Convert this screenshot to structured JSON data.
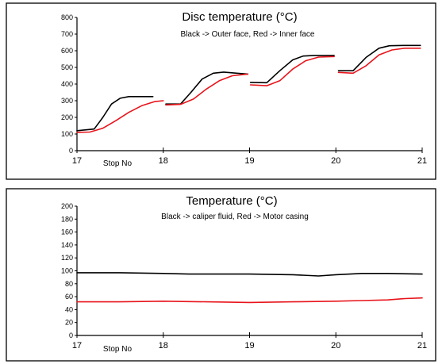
{
  "charts": [
    {
      "title": "Disc temperature (°C)",
      "subtitle": "Black -> Outer face, Red -> Inner face",
      "xlabel": "Stop No"
    },
    {
      "title": "Temperature (°C)",
      "subtitle": "Black -> caliper fluid, Red -> Motor casing",
      "xlabel": "Stop No"
    }
  ],
  "colors": {
    "black_series": "#000000",
    "red_series": "#e8141b",
    "frame": "#000000"
  },
  "chart_data": [
    {
      "type": "line",
      "title": "Disc temperature (°C)",
      "subtitle": "Black -> Outer face, Red -> Inner face",
      "xlabel": "Stop No",
      "ylabel": "",
      "xlim": [
        17,
        21
      ],
      "ylim": [
        0,
        800
      ],
      "xticks": [
        17,
        18,
        19,
        20,
        21
      ],
      "yticks": [
        0,
        100,
        200,
        300,
        400,
        500,
        600,
        700,
        800
      ],
      "grid": false,
      "series": [
        {
          "name": "Outer face",
          "color": "#000000",
          "segments": [
            [
              [
                17.0,
                120
              ],
              [
                17.2,
                130
              ],
              [
                17.3,
                200
              ],
              [
                17.4,
                280
              ],
              [
                17.5,
                315
              ],
              [
                17.6,
                325
              ],
              [
                17.75,
                325
              ],
              [
                17.88,
                325
              ]
            ],
            [
              [
                18.03,
                280
              ],
              [
                18.2,
                280
              ],
              [
                18.32,
                350
              ],
              [
                18.45,
                430
              ],
              [
                18.58,
                465
              ],
              [
                18.7,
                472
              ],
              [
                18.85,
                465
              ],
              [
                18.98,
                460
              ]
            ],
            [
              [
                19.01,
                410
              ],
              [
                19.2,
                408
              ],
              [
                19.35,
                480
              ],
              [
                19.5,
                545
              ],
              [
                19.62,
                568
              ],
              [
                19.75,
                572
              ],
              [
                19.98,
                572
              ]
            ],
            [
              [
                20.03,
                480
              ],
              [
                20.2,
                480
              ],
              [
                20.35,
                560
              ],
              [
                20.5,
                615
              ],
              [
                20.62,
                630
              ],
              [
                20.78,
                632
              ],
              [
                20.98,
                632
              ]
            ]
          ]
        },
        {
          "name": "Inner face",
          "color": "#e8141b",
          "segments": [
            [
              [
                17.0,
                110
              ],
              [
                17.15,
                112
              ],
              [
                17.3,
                135
              ],
              [
                17.45,
                180
              ],
              [
                17.6,
                230
              ],
              [
                17.75,
                270
              ],
              [
                17.9,
                295
              ],
              [
                18.0,
                300
              ]
            ],
            [
              [
                18.03,
                275
              ],
              [
                18.2,
                278
              ],
              [
                18.35,
                310
              ],
              [
                18.5,
                370
              ],
              [
                18.65,
                420
              ],
              [
                18.8,
                450
              ],
              [
                18.98,
                460
              ]
            ],
            [
              [
                19.01,
                395
              ],
              [
                19.2,
                390
              ],
              [
                19.35,
                420
              ],
              [
                19.5,
                490
              ],
              [
                19.65,
                540
              ],
              [
                19.8,
                562
              ],
              [
                19.98,
                565
              ]
            ],
            [
              [
                20.03,
                470
              ],
              [
                20.2,
                465
              ],
              [
                20.35,
                510
              ],
              [
                20.5,
                575
              ],
              [
                20.65,
                605
              ],
              [
                20.8,
                615
              ],
              [
                20.98,
                615
              ]
            ]
          ]
        }
      ]
    },
    {
      "type": "line",
      "title": "Temperature (°C)",
      "subtitle": "Black -> caliper fluid, Red -> Motor casing",
      "xlabel": "Stop No",
      "ylabel": "",
      "xlim": [
        17,
        21
      ],
      "ylim": [
        0,
        200
      ],
      "xticks": [
        17,
        18,
        19,
        20,
        21
      ],
      "yticks": [
        0,
        20,
        40,
        60,
        80,
        100,
        120,
        140,
        160,
        180,
        200
      ],
      "grid": false,
      "series": [
        {
          "name": "caliper fluid",
          "color": "#000000",
          "segments": [
            [
              [
                17.0,
                97
              ],
              [
                17.5,
                97
              ],
              [
                18.0,
                96
              ],
              [
                18.3,
                95
              ],
              [
                18.7,
                95
              ],
              [
                19.0,
                95
              ],
              [
                19.5,
                94
              ],
              [
                19.8,
                92
              ],
              [
                20.0,
                94
              ],
              [
                20.3,
                96
              ],
              [
                20.6,
                96
              ],
              [
                21.0,
                95
              ]
            ]
          ]
        },
        {
          "name": "Motor casing",
          "color": "#e8141b",
          "segments": [
            [
              [
                17.0,
                52
              ],
              [
                17.5,
                52
              ],
              [
                18.0,
                53
              ],
              [
                18.5,
                52
              ],
              [
                19.0,
                51
              ],
              [
                19.5,
                52
              ],
              [
                20.0,
                53
              ],
              [
                20.3,
                54
              ],
              [
                20.6,
                55
              ],
              [
                20.8,
                57
              ],
              [
                21.0,
                58
              ]
            ]
          ]
        }
      ]
    }
  ]
}
